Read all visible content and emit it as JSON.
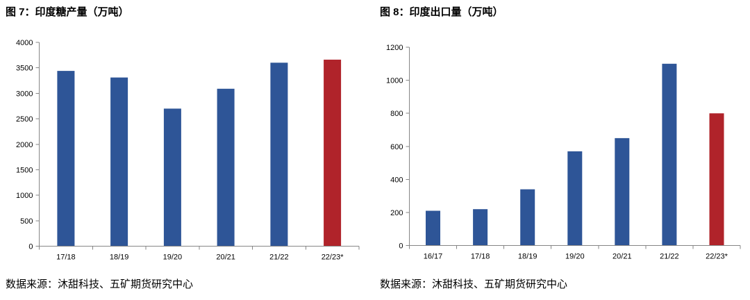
{
  "chart_data": [
    {
      "type": "bar",
      "title": "图 7：印度糖产量（万吨）",
      "categories": [
        "17/18",
        "18/19",
        "19/20",
        "20/21",
        "21/22",
        "22/23*"
      ],
      "values": [
        3440,
        3310,
        2700,
        3090,
        3600,
        3660
      ],
      "ylim": [
        0,
        4000
      ],
      "yticks": [
        0,
        500,
        1000,
        1500,
        2000,
        2500,
        3000,
        3500,
        4000
      ],
      "grid": false,
      "bar_colors": [
        "#2E5597",
        "#2E5597",
        "#2E5597",
        "#2E5597",
        "#2E5597",
        "#B0232A"
      ],
      "source": "数据来源：沐甜科技、五矿期货研究中心"
    },
    {
      "type": "bar",
      "title": "图 8：印度出口量（万吨）",
      "categories": [
        "16/17",
        "17/18",
        "18/19",
        "19/20",
        "20/21",
        "21/22",
        "22/23*"
      ],
      "values": [
        210,
        220,
        340,
        570,
        650,
        1100,
        800
      ],
      "ylim": [
        0,
        1200
      ],
      "yticks": [
        0,
        200,
        400,
        600,
        800,
        1000,
        1200
      ],
      "grid": false,
      "bar_colors": [
        "#2E5597",
        "#2E5597",
        "#2E5597",
        "#2E5597",
        "#2E5597",
        "#2E5597",
        "#B0232A"
      ],
      "source": "数据来源：沐甜科技、五矿期货研究中心"
    }
  ]
}
